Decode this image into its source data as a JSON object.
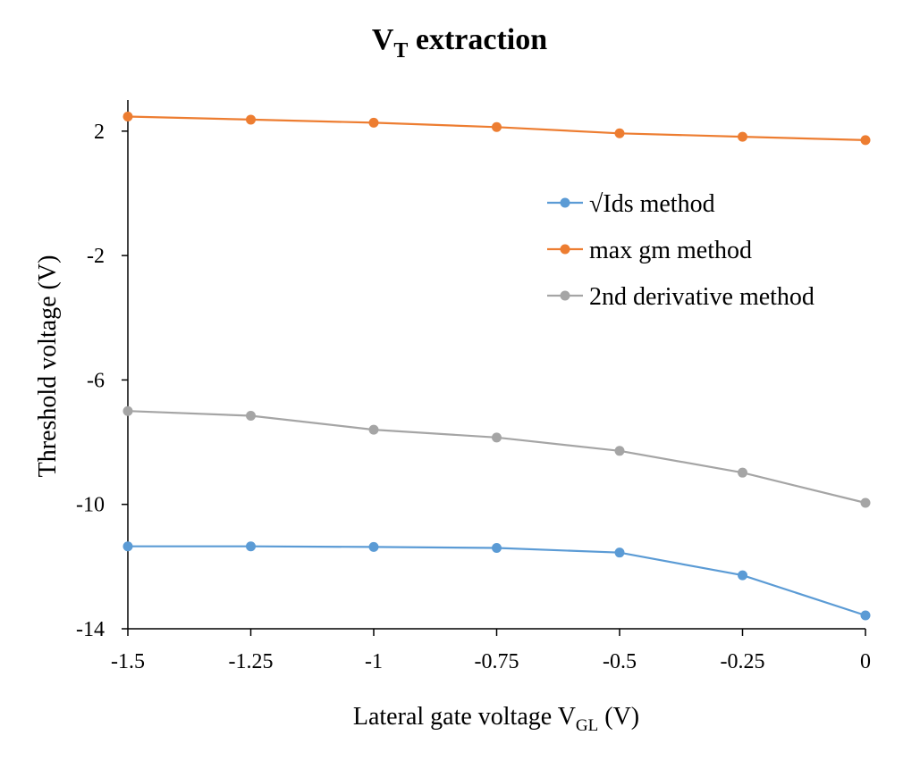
{
  "chart_data": {
    "type": "line",
    "title": {
      "main": "V",
      "sub": "T",
      "rest": " extraction"
    },
    "xlabel": {
      "main": "Lateral gate voltage V",
      "sub": "GL",
      "rest": " (V)"
    },
    "ylabel": "Threshold voltage (V)",
    "x": [
      -1.5,
      -1.25,
      -1,
      -0.75,
      -0.5,
      -0.25,
      0
    ],
    "xlim": [
      -1.5,
      0
    ],
    "ylim": [
      -14,
      3
    ],
    "x_ticks": [
      -1.5,
      -1.25,
      -1,
      -0.75,
      -0.5,
      -0.25,
      0
    ],
    "x_tick_labels": [
      "-1.5",
      "-1.25",
      "-1",
      "-0.75",
      "-0.5",
      "-0.25",
      "0"
    ],
    "y_ticks": [
      2,
      -2,
      -6,
      -10,
      -14
    ],
    "y_tick_labels": [
      "2",
      "-2",
      "-6",
      "-10",
      "-14"
    ],
    "grid": false,
    "legend_position": "right",
    "series": [
      {
        "name": "√Ids method",
        "color": "#5B9BD5",
        "values": [
          -11.35,
          -11.35,
          -11.37,
          -11.4,
          -11.55,
          -12.28,
          -13.57
        ]
      },
      {
        "name": "max gm method",
        "color": "#ED7D31",
        "values": [
          2.47,
          2.37,
          2.27,
          2.13,
          1.93,
          1.82,
          1.71
        ]
      },
      {
        "name": "2nd derivative method",
        "color": "#A5A5A5",
        "values": [
          -7.0,
          -7.15,
          -7.6,
          -7.85,
          -8.28,
          -8.98,
          -9.95
        ]
      }
    ]
  }
}
